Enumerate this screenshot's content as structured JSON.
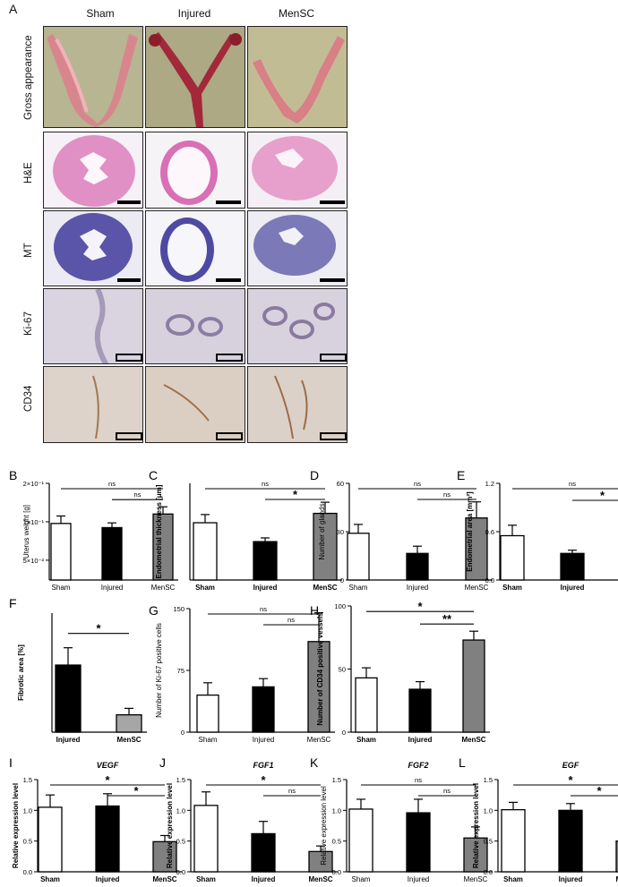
{
  "panel_A": {
    "letter": "A",
    "columns": [
      "Sham",
      "Injured",
      "MenSC"
    ],
    "rows": [
      "Gross appearance",
      "H&E",
      "MT",
      "Ki-67",
      "CD34"
    ]
  },
  "colors": {
    "sham_fill": "#ffffff",
    "injured_fill": "#000000",
    "mensc_fill": "#808080",
    "mensc_fill_F": "#a6a6a6",
    "he_stain": "#d98bbf",
    "mt_stain": "#5b56a8",
    "ki67_bg": "#d7d3de",
    "cd34_bg": "#dcd2c8"
  },
  "chart_data": [
    {
      "letter": "B",
      "type": "bar",
      "categories": [
        "Sham",
        "Injured",
        "MenSC"
      ],
      "values": [
        0.097,
        0.09,
        0.115
      ],
      "errors": [
        0.014,
        0.008,
        0.016
      ],
      "ylabel": "Uterus weight [g]",
      "ylim": [
        0,
        0.2
      ],
      "yticks": [
        0.05,
        0.1,
        0.2
      ],
      "yticklabels": [
        "5×10⁻²",
        "1×10⁻¹",
        "2×10⁻¹"
      ],
      "scale": "log",
      "logmin": 0.035,
      "logmax": 0.2,
      "brackets": [
        {
          "from": 0,
          "to": 2,
          "label": "ns"
        },
        {
          "from": 1,
          "to": 2,
          "label": "ns"
        }
      ]
    },
    {
      "letter": "C",
      "type": "bar",
      "categories": [
        "Sham",
        "Injured",
        "MenSC"
      ],
      "values": [
        385,
        258,
        448
      ],
      "errors": [
        55,
        25,
        75
      ],
      "ylabel": "Endometrial thickness [μm]",
      "ylim": [
        0,
        650
      ],
      "yticks": [],
      "brackets": [
        {
          "from": 0,
          "to": 2,
          "label": "ns"
        },
        {
          "from": 1,
          "to": 2,
          "label": "*"
        }
      ]
    },
    {
      "letter": "D",
      "type": "bar",
      "categories": [
        "Sham",
        "Injured",
        "MenSC"
      ],
      "values": [
        29,
        16.5,
        38.5
      ],
      "errors": [
        5.5,
        4.5,
        10
      ],
      "ylabel": "Number of glands",
      "ylim": [
        0,
        60
      ],
      "yticks": [
        0,
        30,
        60
      ],
      "yticklabels": [
        "0",
        "30",
        "60"
      ],
      "brackets": [
        {
          "from": 0,
          "to": 2,
          "label": "ns"
        },
        {
          "from": 1,
          "to": 2,
          "label": "ns"
        }
      ]
    },
    {
      "letter": "E",
      "type": "bar",
      "categories": [
        "Sham",
        "Injured",
        "MenSC"
      ],
      "values": [
        0.55,
        0.33,
        0.75
      ],
      "errors": [
        0.13,
        0.04,
        0.15
      ],
      "ylabel": "Endometrial area [mm²]",
      "ylim": [
        0,
        1.2
      ],
      "yticks": [
        0,
        0.6,
        1.2
      ],
      "yticklabels": [
        "0.0",
        "0.6",
        "1.2"
      ],
      "brackets": [
        {
          "from": 0,
          "to": 2,
          "label": "ns"
        },
        {
          "from": 1,
          "to": 2,
          "label": "*"
        }
      ]
    },
    {
      "letter": "F",
      "type": "bar",
      "categories": [
        "Injured",
        "MenSC"
      ],
      "values": [
        31,
        8
      ],
      "errors": [
        8,
        3
      ],
      "ylabel": "Fibrotic area [%]",
      "ylim": [
        0,
        55
      ],
      "yticks": [],
      "brackets": [
        {
          "from": 0,
          "to": 1,
          "label": "*"
        }
      ]
    },
    {
      "letter": "G",
      "type": "bar",
      "categories": [
        "Sham",
        "Injured",
        "MenSC"
      ],
      "values": [
        45,
        55,
        110
      ],
      "errors": [
        15,
        10,
        35
      ],
      "ylabel": "Number of Ki-67 positive cells",
      "ylim": [
        0,
        150
      ],
      "yticks": [
        0,
        75,
        150
      ],
      "yticklabels": [
        "0",
        "75",
        "150"
      ],
      "brackets": [
        {
          "from": 0,
          "to": 2,
          "label": "ns"
        },
        {
          "from": 1,
          "to": 2,
          "label": "ns"
        }
      ]
    },
    {
      "letter": "H",
      "type": "bar",
      "categories": [
        "Sham",
        "Injured",
        "MenSC"
      ],
      "values": [
        43,
        34,
        73
      ],
      "errors": [
        8,
        6,
        7
      ],
      "ylabel": "Number of CD34 positive vessels",
      "ylim": [
        0,
        100
      ],
      "yticks": [
        0,
        50,
        100
      ],
      "yticklabels": [
        "0",
        "50",
        "100"
      ],
      "brackets": [
        {
          "from": 0,
          "to": 2,
          "label": "*"
        },
        {
          "from": 1,
          "to": 2,
          "label": "**"
        }
      ]
    },
    {
      "letter": "I",
      "type": "bar",
      "title": "VEGF",
      "categories": [
        "Sham",
        "Injured",
        "MenSC"
      ],
      "values": [
        1.05,
        1.07,
        0.49
      ],
      "errors": [
        0.2,
        0.2,
        0.1
      ],
      "ylabel": "Relative expression level",
      "ylim": [
        0,
        1.5
      ],
      "yticks": [
        0,
        0.5,
        1,
        1.5
      ],
      "yticklabels": [
        "0.0",
        "0.5",
        "1.0",
        "1.5"
      ],
      "brackets": [
        {
          "from": 0,
          "to": 2,
          "label": "*"
        },
        {
          "from": 1,
          "to": 2,
          "label": "*"
        }
      ]
    },
    {
      "letter": "J",
      "type": "bar",
      "title": "FGF1",
      "categories": [
        "Sham",
        "Injured",
        "MenSC"
      ],
      "values": [
        1.08,
        0.62,
        0.33
      ],
      "errors": [
        0.22,
        0.2,
        0.09
      ],
      "ylabel": "Relative expression level",
      "ylim": [
        0,
        1.5
      ],
      "yticks": [
        0,
        0.5,
        1,
        1.5
      ],
      "yticklabels": [
        "0.0",
        "0.5",
        "1.0",
        "1.5"
      ],
      "brackets": [
        {
          "from": 0,
          "to": 2,
          "label": "*"
        },
        {
          "from": 1,
          "to": 2,
          "label": "ns"
        }
      ]
    },
    {
      "letter": "K",
      "type": "bar",
      "title": "FGF2",
      "categories": [
        "Sham",
        "Injured",
        "MenSC"
      ],
      "values": [
        1.02,
        0.96,
        0.55
      ],
      "errors": [
        0.16,
        0.22,
        0.18
      ],
      "ylabel": "Relative expression level",
      "ylim": [
        0,
        1.5
      ],
      "yticks": [
        0,
        0.5,
        1,
        1.5
      ],
      "yticklabels": [
        "0.0",
        "0.5",
        "1.0",
        "1.5"
      ],
      "brackets": [
        {
          "from": 0,
          "to": 2,
          "label": "ns"
        },
        {
          "from": 1,
          "to": 2,
          "label": "ns"
        }
      ]
    },
    {
      "letter": "L",
      "type": "bar",
      "title": "EGF",
      "categories": [
        "Sham",
        "Injured",
        "MenSC"
      ],
      "values": [
        1.01,
        1.0,
        0.5
      ],
      "errors": [
        0.12,
        0.11,
        0.1
      ],
      "ylabel": "Relative expression level",
      "ylim": [
        0,
        1.5
      ],
      "yticks": [
        0,
        0.5,
        1,
        1.5
      ],
      "yticklabels": [
        "0.0",
        "0.5",
        "1.0",
        "1.5"
      ],
      "brackets": [
        {
          "from": 0,
          "to": 2,
          "label": "*"
        },
        {
          "from": 1,
          "to": 2,
          "label": "*"
        }
      ]
    }
  ]
}
